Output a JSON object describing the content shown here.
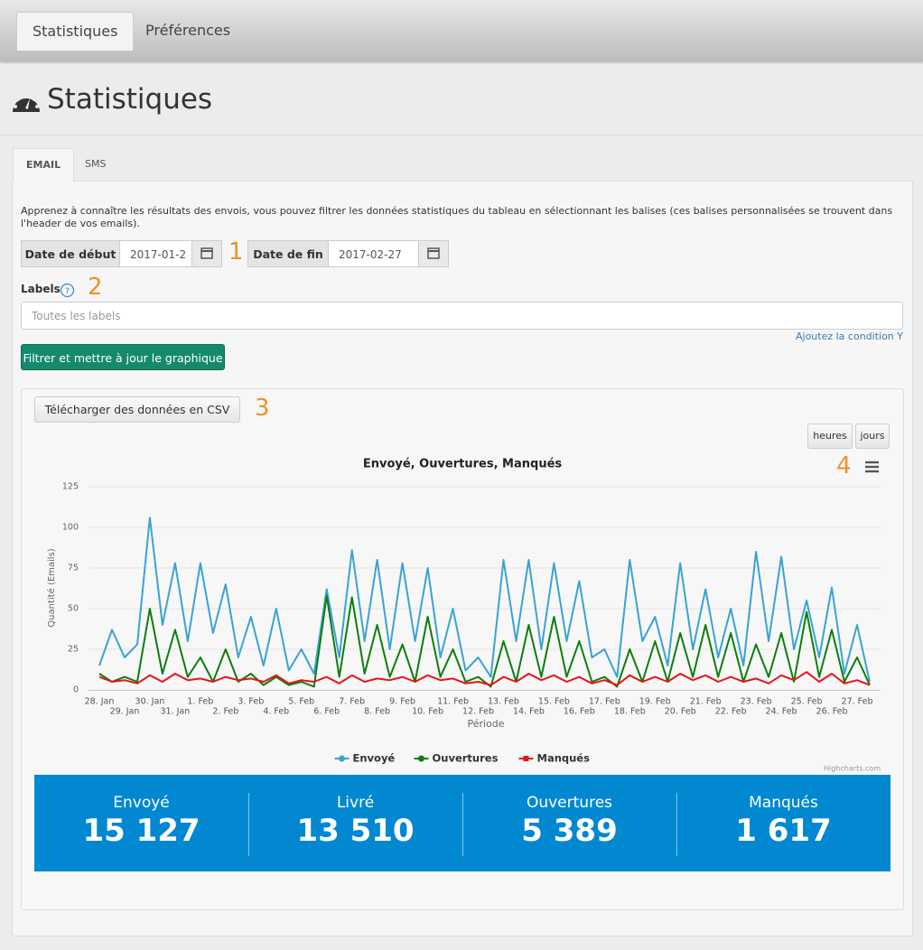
{
  "nav": {
    "tabs": [
      "Statistiques",
      "Préférences"
    ]
  },
  "header": {
    "title": "Statistiques"
  },
  "tabs": [
    "EMAIL",
    "SMS"
  ],
  "form": {
    "intro": "Apprenez à connaître les résultats des envois, vous pouvez filtrer les données statistiques du tableau en sélectionnant les balises (ces balises personnalisées se trouvent dans l'header de vos emails).",
    "start_label": "Date de début",
    "start_value": "2017-01-2",
    "end_label": "Date de fin",
    "end_value": "2017-02-27",
    "labels_label": "Labels",
    "labels_placeholder": "Toutes les labels",
    "condition_link": "Ajoutez la condition Y",
    "filter_button": "Filtrer et mettre à jour le graphique"
  },
  "annotations": [
    "1",
    "2",
    "3",
    "4"
  ],
  "csv_button": "Télécharger des données en CSV",
  "period_buttons": [
    "heures",
    "jours"
  ],
  "chart_data": {
    "type": "line",
    "title": "Envoyé, Ouvertures, Manqués",
    "y_label": "Quantité (Emails)",
    "x_label": "Période",
    "credit": "Highcharts.com",
    "categories": [
      "28. Jan",
      null,
      "29. Jan",
      null,
      "30. Jan",
      null,
      "31. Jan",
      null,
      "1. Feb",
      null,
      "2. Feb",
      null,
      "3. Feb",
      null,
      "4. Feb",
      null,
      "5. Feb",
      null,
      "6. Feb",
      null,
      "7. Feb",
      null,
      "8. Feb",
      null,
      "9. Feb",
      null,
      "10. Feb",
      null,
      "11. Feb",
      null,
      "12. Feb",
      null,
      "13. Feb",
      null,
      "14. Feb",
      null,
      "15. Feb",
      null,
      "16. Feb",
      null,
      "17. Feb",
      null,
      "18. Feb",
      null,
      "19. Feb",
      null,
      "20. Feb",
      null,
      "21. Feb",
      null,
      "22. Feb",
      null,
      "23. Feb",
      null,
      "24. Feb",
      null,
      "25. Feb",
      null,
      "26. Feb",
      null,
      "27. Feb",
      null
    ],
    "series": [
      {
        "name": "Envoyé",
        "color": "#3aa3d3",
        "values": [
          15,
          37,
          20,
          28,
          106,
          40,
          78,
          30,
          78,
          35,
          65,
          20,
          45,
          15,
          50,
          12,
          25,
          10,
          62,
          20,
          86,
          30,
          80,
          25,
          78,
          30,
          75,
          20,
          50,
          12,
          20,
          8,
          80,
          30,
          80,
          25,
          78,
          30,
          67,
          20,
          25,
          8,
          80,
          30,
          45,
          15,
          78,
          25,
          62,
          20,
          50,
          15,
          85,
          30,
          82,
          25,
          55,
          20,
          63,
          10,
          40,
          5
        ]
      },
      {
        "name": "Ouvertures",
        "color": "#0d7e0d",
        "values": [
          10,
          5,
          8,
          5,
          50,
          10,
          37,
          8,
          20,
          5,
          25,
          5,
          10,
          3,
          8,
          3,
          5,
          2,
          58,
          8,
          57,
          10,
          40,
          8,
          28,
          5,
          45,
          8,
          25,
          5,
          8,
          2,
          30,
          5,
          40,
          8,
          45,
          8,
          30,
          5,
          8,
          2,
          25,
          5,
          30,
          5,
          35,
          8,
          40,
          8,
          35,
          5,
          28,
          8,
          35,
          5,
          48,
          8,
          37,
          5,
          20,
          3
        ]
      },
      {
        "name": "Manqués",
        "color": "#e8141b",
        "values": [
          8,
          5,
          6,
          4,
          9,
          5,
          10,
          6,
          7,
          5,
          8,
          6,
          7,
          5,
          9,
          4,
          6,
          5,
          8,
          4,
          9,
          5,
          7,
          6,
          8,
          5,
          9,
          6,
          7,
          4,
          5,
          3,
          8,
          5,
          10,
          6,
          9,
          5,
          8,
          4,
          6,
          3,
          9,
          5,
          8,
          5,
          10,
          6,
          9,
          5,
          8,
          5,
          7,
          4,
          9,
          6,
          11,
          5,
          10,
          4,
          6,
          3
        ]
      }
    ],
    "ylim": [
      0,
      125
    ],
    "yticks": [
      0,
      25,
      50,
      75,
      100,
      125
    ],
    "grid": true,
    "legend": "bottom"
  },
  "stats": [
    {
      "label": "Envoyé",
      "value": "15 127"
    },
    {
      "label": "Livré",
      "value": "13 510"
    },
    {
      "label": "Ouvertures",
      "value": "5 389"
    },
    {
      "label": "Manqués",
      "value": "1 617"
    }
  ]
}
